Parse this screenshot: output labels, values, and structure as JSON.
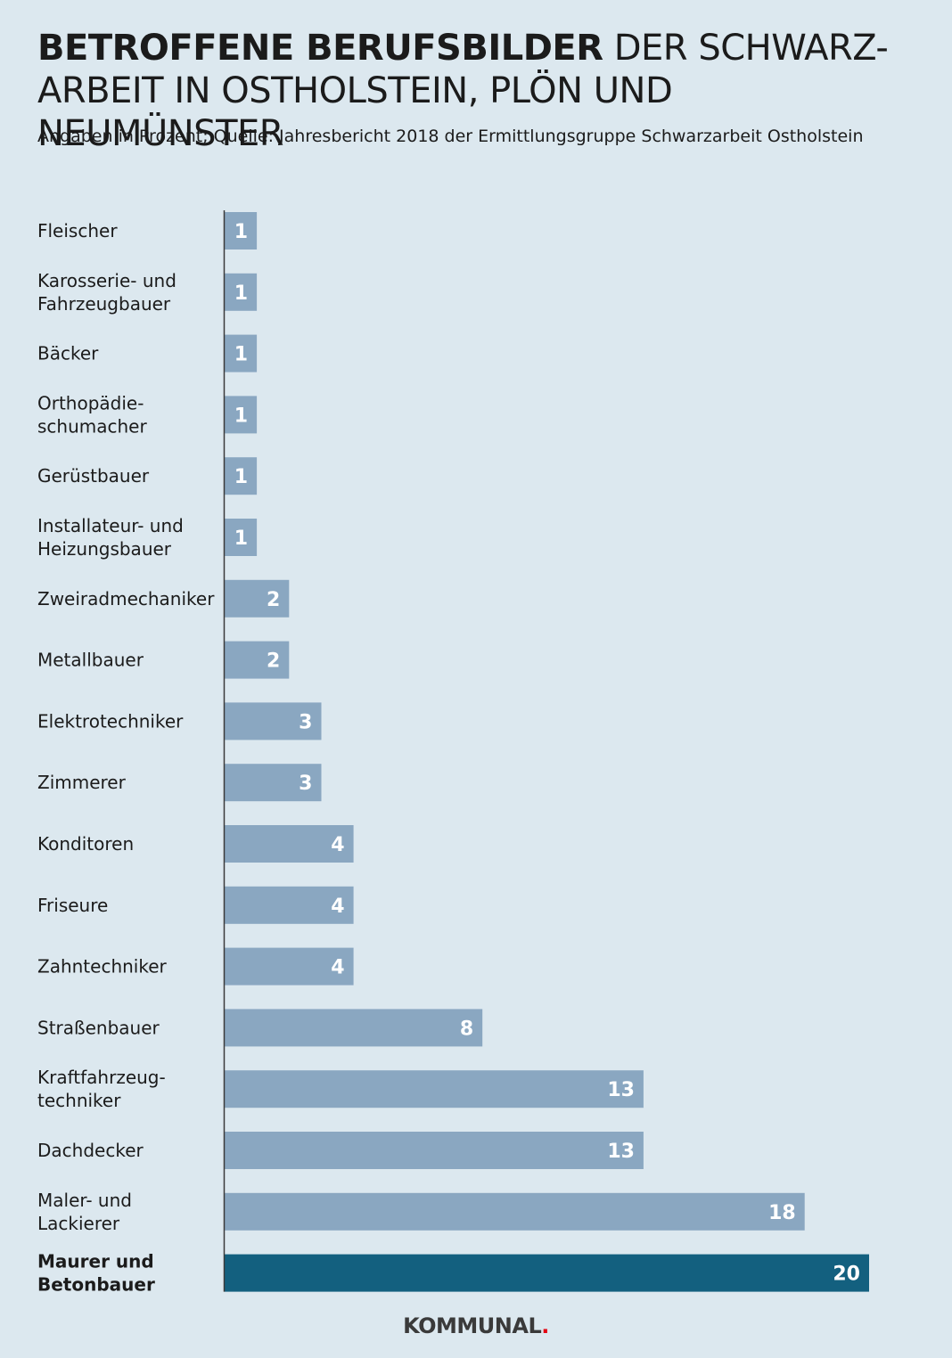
{
  "header": {
    "title_bold": "BETROFFENE BERUFSBILDER",
    "title_regular": " DER SCHWARZ-ARBEIT IN OSTHOLSTEIN, PLÖN UND NEUMÜNSTER",
    "subtitle": "Angaben in Prozent; Quelle: Jahresbericht 2018 der Ermittlungsgruppe Schwarzarbeit Ostholstein"
  },
  "brand": {
    "name": "KOMMUNAL",
    "dot": "."
  },
  "colors": {
    "bar": "#8aa7c1",
    "highlight": "#13607f",
    "axis": "#3a3a3a",
    "background": "#dce8ef"
  },
  "chart_data": {
    "type": "bar",
    "orientation": "horizontal",
    "title": "BETROFFENE BERUFSBILDER DER SCHWARZ-ARBEIT IN OSTHOLSTEIN, PLÖN UND NEUMÜNSTER",
    "subtitle": "Angaben in Prozent; Quelle: Jahresbericht 2018 der Ermittlungsgruppe Schwarzarbeit Ostholstein",
    "unit": "%",
    "xlim": [
      0,
      20
    ],
    "grid": false,
    "categories": [
      [
        "Fleischer"
      ],
      [
        "Karosserie- und",
        "Fahrzeugbauer"
      ],
      [
        "Bäcker"
      ],
      [
        "Orthopädie-",
        "schumacher"
      ],
      [
        "Gerüstbauer"
      ],
      [
        "Installateur- und",
        "Heizungsbauer"
      ],
      [
        "Zweiradmechaniker"
      ],
      [
        "Metallbauer"
      ],
      [
        "Elektrotechniker"
      ],
      [
        "Zimmerer"
      ],
      [
        "Konditoren"
      ],
      [
        "Friseure"
      ],
      [
        "Zahntechniker"
      ],
      [
        "Straßenbauer"
      ],
      [
        "Kraftfahrzeug-",
        "techniker"
      ],
      [
        "Dachdecker"
      ],
      [
        "Maler- und",
        "Lackierer"
      ],
      [
        "Maurer und",
        "Betonbauer"
      ]
    ],
    "values": [
      1,
      1,
      1,
      1,
      1,
      1,
      2,
      2,
      3,
      3,
      4,
      4,
      4,
      8,
      13,
      13,
      18,
      20
    ],
    "highlight_index": 17
  }
}
